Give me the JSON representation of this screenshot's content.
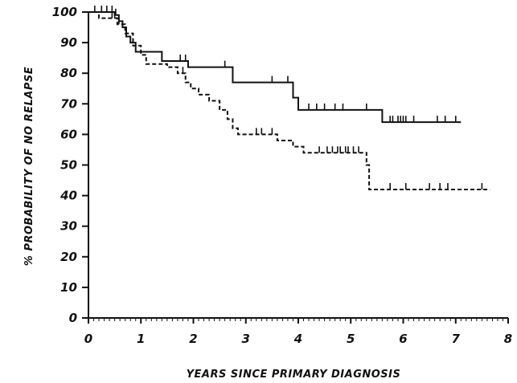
{
  "chart_data": {
    "type": "line",
    "chart_style": "kaplan-meier step survival curves with censoring tick marks",
    "xlabel": "YEARS SINCE PRIMARY DIAGNOSIS",
    "ylabel": "% PROBABILITY OF NO RELAPSE",
    "xlim": [
      0,
      8
    ],
    "ylim": [
      0,
      100
    ],
    "x_ticks": [
      "0",
      "1",
      "2",
      "3",
      "4",
      "5",
      "6",
      "7",
      "8"
    ],
    "y_ticks": [
      "0",
      "10",
      "20",
      "30",
      "40",
      "50",
      "60",
      "70",
      "80",
      "90",
      "100"
    ],
    "grid": false,
    "legend": "none",
    "colors": {
      "line": "#111111",
      "background": "#ffffff"
    },
    "series": [
      {
        "line_style": "solid",
        "steps": [
          [
            0,
            100
          ],
          [
            0.5,
            99
          ],
          [
            0.58,
            97
          ],
          [
            0.65,
            95
          ],
          [
            0.72,
            92
          ],
          [
            0.8,
            90
          ],
          [
            0.9,
            87
          ],
          [
            1.4,
            84
          ],
          [
            1.9,
            82
          ],
          [
            2.75,
            77
          ],
          [
            3.9,
            72
          ],
          [
            4.0,
            68
          ],
          [
            5.6,
            64
          ],
          [
            7.1,
            64
          ]
        ],
        "censored": [
          0.12,
          0.25,
          0.35,
          0.45,
          0.52,
          1.75,
          1.85,
          2.6,
          3.5,
          3.8,
          4.2,
          4.35,
          4.5,
          4.7,
          4.85,
          5.3,
          5.75,
          5.8,
          5.9,
          5.95,
          6.0,
          6.05,
          6.2,
          6.65,
          6.8,
          7.0
        ]
      },
      {
        "line_style": "dashed",
        "steps": [
          [
            0,
            100
          ],
          [
            0.2,
            98
          ],
          [
            0.55,
            96
          ],
          [
            0.7,
            93
          ],
          [
            0.85,
            89
          ],
          [
            1.0,
            86
          ],
          [
            1.1,
            83
          ],
          [
            1.5,
            82
          ],
          [
            1.7,
            80
          ],
          [
            1.85,
            77
          ],
          [
            1.95,
            75
          ],
          [
            2.1,
            73
          ],
          [
            2.3,
            71
          ],
          [
            2.5,
            68
          ],
          [
            2.65,
            65
          ],
          [
            2.75,
            62
          ],
          [
            2.85,
            60
          ],
          [
            3.6,
            58
          ],
          [
            3.9,
            56
          ],
          [
            4.1,
            54
          ],
          [
            5.3,
            50
          ],
          [
            5.35,
            42
          ],
          [
            7.65,
            42
          ]
        ],
        "censored": [
          0.45,
          0.5,
          0.58,
          1.8,
          3.2,
          3.3,
          3.5,
          4.4,
          4.55,
          4.65,
          4.75,
          4.8,
          4.9,
          4.95,
          5.05,
          5.15,
          5.75,
          6.05,
          6.5,
          6.7,
          6.85,
          7.5
        ]
      }
    ]
  }
}
